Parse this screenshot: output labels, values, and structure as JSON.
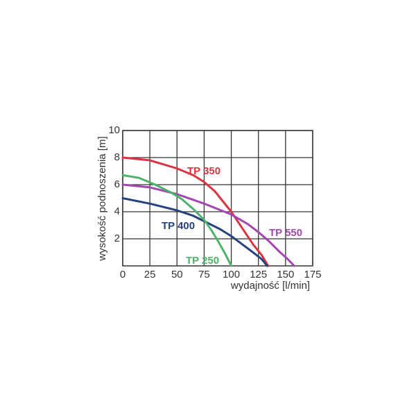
{
  "chart_data": {
    "type": "line",
    "x_label": "wydajność  [l/min]",
    "y_label": "wysokość podnoszenia [m]",
    "xlim": [
      0,
      175
    ],
    "xticks": [
      0,
      25,
      50,
      75,
      100,
      125,
      150,
      175
    ],
    "ylim": [
      0,
      10
    ],
    "yticks": [
      2,
      4,
      6,
      8,
      10
    ],
    "grid": true,
    "series": [
      {
        "name": "TP 350",
        "color": "#d9343f",
        "x": [
          0,
          25,
          50,
          65,
          75,
          85,
          95,
          100,
          110,
          120,
          128,
          134
        ],
        "values": [
          8.0,
          7.8,
          7.2,
          6.7,
          6.2,
          5.5,
          4.5,
          4.0,
          2.8,
          1.6,
          0.8,
          0
        ]
      },
      {
        "name": "TP 550",
        "color": "#a347b0",
        "x": [
          0,
          25,
          50,
          75,
          100,
          115,
          125,
          135,
          145,
          152,
          158
        ],
        "values": [
          6.0,
          5.8,
          5.3,
          4.6,
          3.8,
          3.1,
          2.5,
          1.8,
          1.0,
          0.5,
          0
        ]
      },
      {
        "name": "TP 400",
        "color": "#24427e",
        "x": [
          0,
          25,
          50,
          65,
          75,
          90,
          100,
          110,
          120,
          128,
          133
        ],
        "values": [
          5.0,
          4.6,
          4.1,
          3.7,
          3.3,
          2.7,
          2.2,
          1.6,
          1.0,
          0.5,
          0
        ]
      },
      {
        "name": "TP 250",
        "color": "#4cb46a",
        "x": [
          0,
          15,
          30,
          45,
          55,
          65,
          75,
          82,
          88,
          95,
          100
        ],
        "values": [
          6.7,
          6.5,
          6.0,
          5.4,
          4.9,
          4.2,
          3.4,
          2.6,
          1.8,
          0.8,
          0
        ]
      }
    ]
  }
}
